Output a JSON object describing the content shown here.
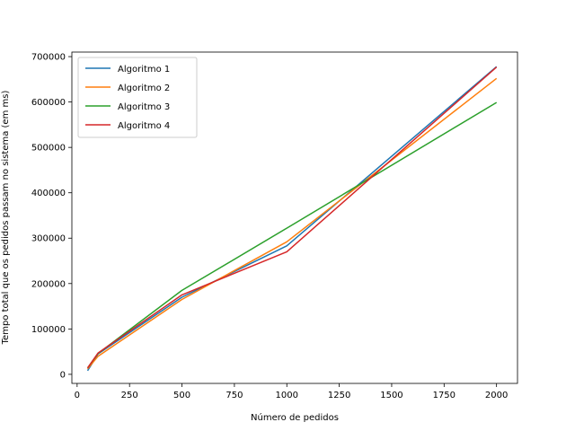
{
  "chart_data": {
    "type": "line",
    "title": "",
    "xlabel": "Número de pedidos",
    "ylabel": "Tempo total que os pedidos passam no sistema (em ms)",
    "xlim": [
      -25,
      2100
    ],
    "ylim": [
      -20000,
      710000
    ],
    "xticks": [
      0,
      250,
      500,
      750,
      1000,
      1250,
      1500,
      1750,
      2000
    ],
    "xtick_labels": [
      "0",
      "250",
      "500",
      "750",
      "1000",
      "1250",
      "1500",
      "1750",
      "2000"
    ],
    "yticks": [
      0,
      100000,
      200000,
      300000,
      400000,
      500000,
      600000,
      700000
    ],
    "ytick_labels": [
      "0",
      "100000",
      "200000",
      "300000",
      "400000",
      "500000",
      "600000",
      "700000"
    ],
    "grid": false,
    "legend_position": "top-left",
    "series": [
      {
        "name": "Algoritmo 1",
        "color": "#1f77b4",
        "x": [
          50,
          100,
          500,
          1000,
          2000
        ],
        "y": [
          8000,
          45000,
          170000,
          283000,
          678000
        ]
      },
      {
        "name": "Algoritmo 2",
        "color": "#ff7f0e",
        "x": [
          50,
          100,
          500,
          1000,
          2000
        ],
        "y": [
          12000,
          40000,
          165000,
          292000,
          652000
        ]
      },
      {
        "name": "Algoritmo 3",
        "color": "#2ca02c",
        "x": [
          50,
          100,
          500,
          1000,
          2000
        ],
        "y": [
          14000,
          46000,
          185000,
          322000,
          599000
        ]
      },
      {
        "name": "Algoritmo 4",
        "color": "#d62728",
        "x": [
          50,
          100,
          500,
          1000,
          2000
        ],
        "y": [
          14000,
          47000,
          175000,
          270000,
          677000
        ]
      }
    ]
  }
}
